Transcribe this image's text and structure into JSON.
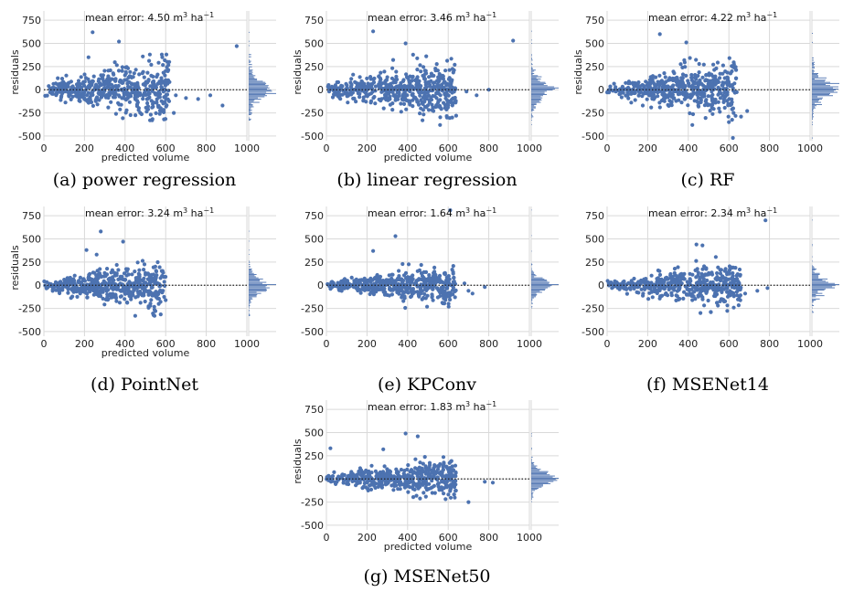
{
  "figure": {
    "colors": {
      "points": "#4c72b0",
      "grid": "#d9d9d9",
      "zero_line": "#222222"
    }
  },
  "chart_data": [
    {
      "type": "scatter",
      "id": "a",
      "caption": "(a) power regression",
      "annotation": {
        "prefix": "mean error: ",
        "value": "4.50",
        "unit_base": " m",
        "unit_sup1": "3",
        "unit_mid": " ha",
        "unit_sup2": "−1"
      },
      "xlabel": "predicted volume",
      "ylabel": "residuals",
      "xlim": [
        0,
        1000
      ],
      "ylim": [
        -550,
        850
      ],
      "xticks": [
        0,
        200,
        400,
        600,
        800,
        1000
      ],
      "yticks": [
        -500,
        -250,
        0,
        250,
        500,
        750
      ],
      "reference_line": {
        "y": 0,
        "style": "dotted"
      },
      "marginal_histogram": "residuals",
      "grid": true,
      "point_cloud": {
        "n": 520,
        "x_max": 620,
        "spread": 1.25,
        "tail": [
          [
            650,
            -60
          ],
          [
            700,
            -90
          ],
          [
            760,
            -100
          ],
          [
            820,
            -60
          ],
          [
            880,
            -170
          ],
          [
            950,
            470
          ],
          [
            240,
            620
          ],
          [
            370,
            520
          ],
          [
            220,
            350
          ],
          [
            640,
            -250
          ]
        ]
      }
    },
    {
      "type": "scatter",
      "id": "b",
      "caption": "(b) linear regression",
      "annotation": {
        "prefix": "mean error: ",
        "value": "3.46",
        "unit_base": " m",
        "unit_sup1": "3",
        "unit_mid": " ha",
        "unit_sup2": "−1"
      },
      "xlabel": "predicted volume",
      "ylabel": "residuals",
      "xlim": [
        0,
        1000
      ],
      "ylim": [
        -550,
        850
      ],
      "xticks": [
        0,
        200,
        400,
        600,
        800,
        1000
      ],
      "yticks": [
        -500,
        -250,
        0,
        250,
        500,
        750
      ],
      "reference_line": {
        "y": 0,
        "style": "dotted"
      },
      "marginal_histogram": "residuals",
      "grid": true,
      "point_cloud": {
        "n": 520,
        "x_max": 640,
        "spread": 1.15,
        "tail": [
          [
            690,
            -20
          ],
          [
            740,
            -60
          ],
          [
            800,
            0
          ],
          [
            920,
            530
          ],
          [
            230,
            630
          ],
          [
            390,
            500
          ],
          [
            620,
            -300
          ],
          [
            560,
            -380
          ]
        ]
      }
    },
    {
      "type": "scatter",
      "id": "c",
      "caption": "(c) RF",
      "annotation": {
        "prefix": "mean error: ",
        "value": "4.22",
        "unit_base": " m",
        "unit_sup1": "3",
        "unit_mid": " ha",
        "unit_sup2": "−1"
      },
      "xlabel": "",
      "ylabel": "residuals",
      "xlim": [
        0,
        1000
      ],
      "ylim": [
        -550,
        850
      ],
      "xticks": [
        0,
        200,
        400,
        600,
        800,
        1000
      ],
      "yticks": [
        -500,
        -250,
        0,
        250,
        500,
        750
      ],
      "reference_line": {
        "y": 0,
        "style": "dotted"
      },
      "marginal_histogram": "residuals",
      "grid": true,
      "point_cloud": {
        "n": 500,
        "x_max": 640,
        "spread": 1.2,
        "tail": [
          [
            660,
            -290
          ],
          [
            690,
            -230
          ],
          [
            260,
            600
          ],
          [
            390,
            510
          ],
          [
            620,
            -520
          ],
          [
            600,
            -350
          ],
          [
            420,
            -380
          ]
        ]
      }
    },
    {
      "type": "scatter",
      "id": "d",
      "caption": "(d) PointNet",
      "annotation": {
        "prefix": "mean error: ",
        "value": "3.24",
        "unit_base": " m",
        "unit_sup1": "3",
        "unit_mid": " ha",
        "unit_sup2": "−1"
      },
      "xlabel": "predicted volume",
      "ylabel": "residuals",
      "xlim": [
        0,
        1000
      ],
      "ylim": [
        -550,
        850
      ],
      "xticks": [
        0,
        200,
        400,
        600,
        800,
        1000
      ],
      "yticks": [
        -500,
        -250,
        0,
        250,
        500,
        750
      ],
      "reference_line": {
        "y": 0,
        "style": "dotted"
      },
      "marginal_histogram": "residuals",
      "grid": true,
      "point_cloud": {
        "n": 500,
        "x_max": 600,
        "spread": 1.0,
        "tail": [
          [
            280,
            580
          ],
          [
            390,
            470
          ],
          [
            210,
            380
          ],
          [
            260,
            330
          ]
        ]
      }
    },
    {
      "type": "scatter",
      "id": "e",
      "caption": "(e) KPConv",
      "annotation": {
        "prefix": "mean error: ",
        "value": "1.64",
        "unit_base": " m",
        "unit_sup1": "3",
        "unit_mid": " ha",
        "unit_sup2": "−1"
      },
      "xlabel": "",
      "ylabel": "",
      "xlim": [
        0,
        1000
      ],
      "ylim": [
        -550,
        850
      ],
      "xticks": [
        0,
        200,
        400,
        600,
        800,
        1000
      ],
      "yticks": [
        -500,
        -250,
        0,
        250,
        500,
        750
      ],
      "reference_line": {
        "y": 0,
        "style": "dotted"
      },
      "marginal_histogram": "residuals",
      "grid": true,
      "point_cloud": {
        "n": 480,
        "x_max": 640,
        "spread": 0.8,
        "tail": [
          [
            610,
            810
          ],
          [
            340,
            530
          ],
          [
            230,
            370
          ],
          [
            700,
            -60
          ],
          [
            720,
            -90
          ],
          [
            780,
            -20
          ],
          [
            680,
            20
          ]
        ]
      }
    },
    {
      "type": "scatter",
      "id": "f",
      "caption": "(f) MSENet14",
      "annotation": {
        "prefix": "mean error: ",
        "value": "2.34",
        "unit_base": " m",
        "unit_sup1": "3",
        "unit_mid": " ha",
        "unit_sup2": "−1"
      },
      "xlabel": "",
      "ylabel": "",
      "xlim": [
        0,
        1000
      ],
      "ylim": [
        -550,
        850
      ],
      "xticks": [
        0,
        200,
        400,
        600,
        800,
        1000
      ],
      "yticks": [
        -500,
        -250,
        0,
        250,
        500,
        750
      ],
      "reference_line": {
        "y": 0,
        "style": "dotted"
      },
      "marginal_histogram": "residuals",
      "grid": true,
      "point_cloud": {
        "n": 480,
        "x_max": 660,
        "spread": 0.85,
        "tail": [
          [
            780,
            700
          ],
          [
            440,
            440
          ],
          [
            470,
            430
          ],
          [
            680,
            -90
          ],
          [
            740,
            -60
          ],
          [
            790,
            -30
          ],
          [
            460,
            -300
          ]
        ]
      }
    },
    {
      "type": "scatter",
      "id": "g",
      "caption": "(g) MSENet50",
      "annotation": {
        "prefix": "mean error: ",
        "value": "1.83",
        "unit_base": " m",
        "unit_sup1": "3",
        "unit_mid": " ha",
        "unit_sup2": "−1"
      },
      "xlabel": "predicted volume",
      "ylabel": "residuals",
      "xlim": [
        0,
        1000
      ],
      "ylim": [
        -550,
        850
      ],
      "xticks": [
        0,
        200,
        400,
        600,
        800,
        1000
      ],
      "yticks": [
        -500,
        -250,
        0,
        250,
        500,
        750
      ],
      "reference_line": {
        "y": 0,
        "style": "dotted"
      },
      "marginal_histogram": "residuals",
      "grid": true,
      "point_cloud": {
        "n": 480,
        "x_max": 640,
        "spread": 0.8,
        "tail": [
          [
            390,
            490
          ],
          [
            450,
            460
          ],
          [
            20,
            330
          ],
          [
            780,
            -30
          ],
          [
            700,
            -250
          ],
          [
            820,
            -40
          ],
          [
            280,
            320
          ]
        ]
      }
    }
  ]
}
